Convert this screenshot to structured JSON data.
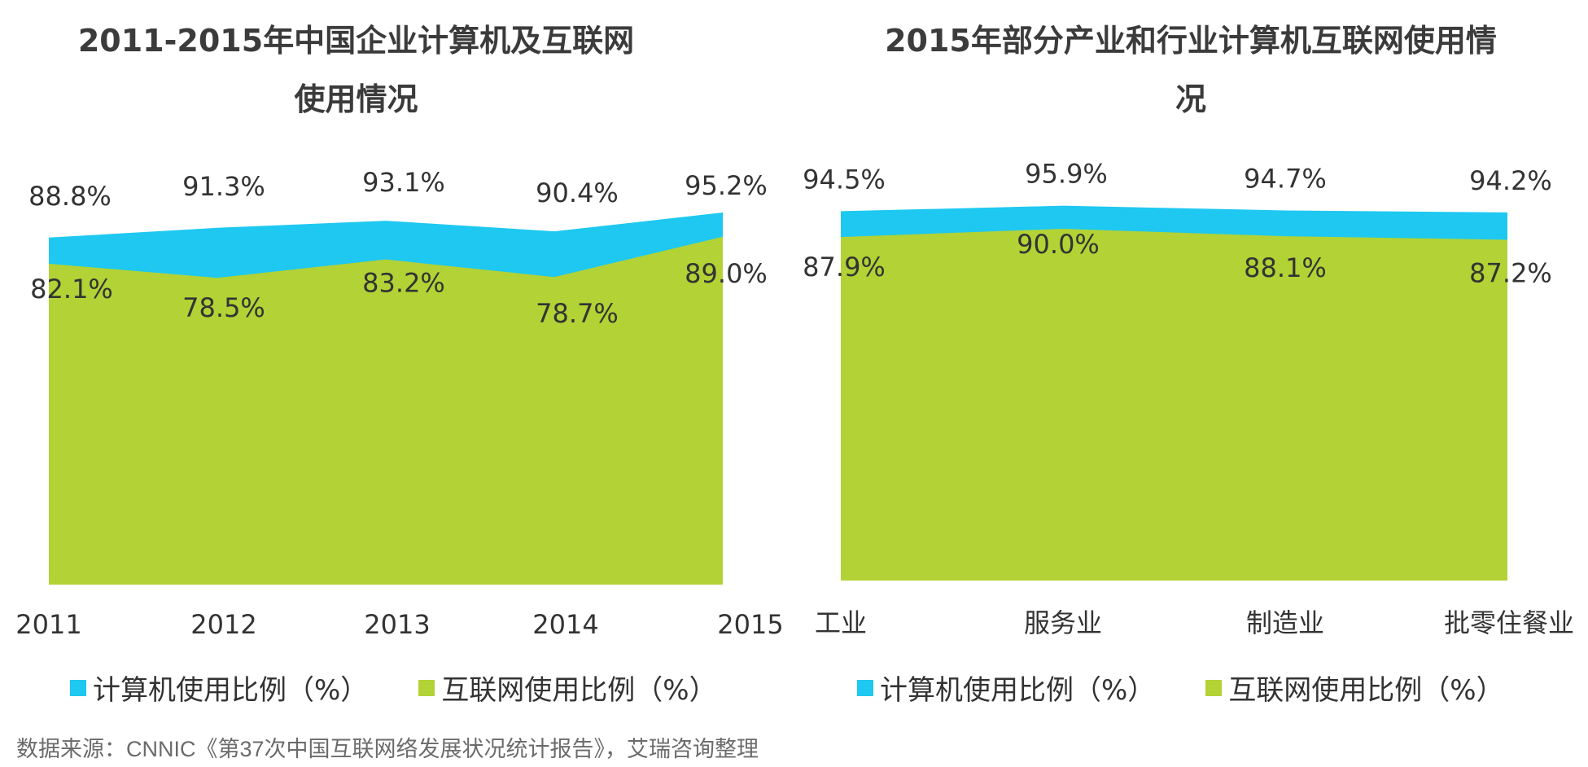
{
  "colors": {
    "computer": "#1ec8f0",
    "internet": "#b2d235"
  },
  "chart_data": [
    {
      "type": "area",
      "title": "2011-2015年中国企业计算机及互联网使用情况",
      "categories": [
        "2011",
        "2012",
        "2013",
        "2014",
        "2015"
      ],
      "series": [
        {
          "name": "计算机使用比例（%）",
          "values": [
            88.8,
            91.3,
            93.1,
            90.4,
            95.2
          ],
          "value_labels": [
            "88.8%",
            "91.3%",
            "93.1%",
            "90.4%",
            "95.2%"
          ]
        },
        {
          "name": "互联网使用比例（%）",
          "values": [
            82.1,
            78.5,
            83.2,
            78.7,
            89.0
          ],
          "value_labels": [
            "82.1%",
            "78.5%",
            "83.2%",
            "78.7%",
            "89.0%"
          ]
        }
      ],
      "ylim": [
        0,
        100
      ]
    },
    {
      "type": "area",
      "title": "2015年部分产业和行业计算机互联网使用情况",
      "categories": [
        "工业",
        "服务业",
        "制造业",
        "批零住餐业"
      ],
      "series": [
        {
          "name": "计算机使用比例（%）",
          "values": [
            94.5,
            95.9,
            94.7,
            94.2
          ],
          "value_labels": [
            "94.5%",
            "95.9%",
            "94.7%",
            "94.2%"
          ]
        },
        {
          "name": "互联网使用比例（%）",
          "values": [
            87.9,
            90.0,
            88.1,
            87.2
          ],
          "value_labels": [
            "87.9%",
            "90.0%",
            "88.1%",
            "87.2%"
          ]
        }
      ],
      "ylim": [
        0,
        100
      ]
    }
  ],
  "legend": {
    "computer": "计算机使用比例（%）",
    "internet": "互联网使用比例（%）"
  },
  "footer": "数据来源：CNNIC《第37次中国互联网络发展状况统计报告》，艾瑞咨询整理"
}
